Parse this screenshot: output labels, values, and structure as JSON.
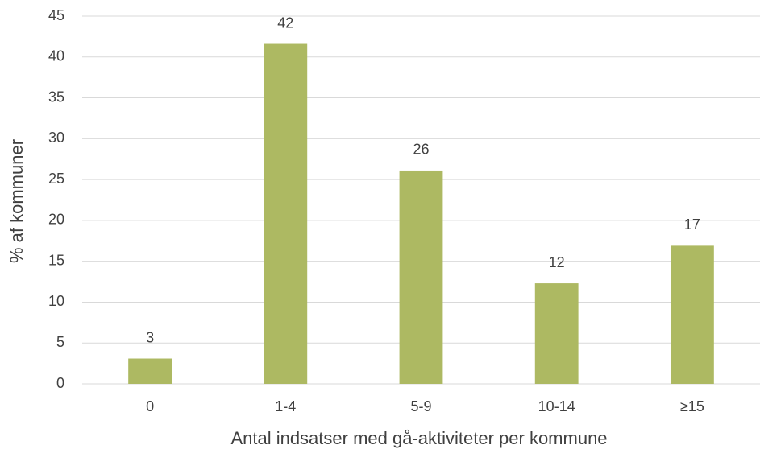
{
  "chart_data": {
    "type": "bar",
    "xlabel": "Antal indsatser med gå-aktiviteter per kommune",
    "ylabel": "% af kommuner",
    "categories": [
      "0",
      "1-4",
      "5-9",
      "10-14",
      "≥15"
    ],
    "values": [
      3.1,
      41.6,
      26.1,
      12.3,
      16.9
    ],
    "value_labels": [
      "3",
      "42",
      "26",
      "12",
      "17"
    ],
    "color": "#adb962",
    "ylim": [
      0,
      45
    ],
    "yticks": [
      0,
      5,
      10,
      15,
      20,
      25,
      30,
      35,
      40,
      45
    ],
    "grid": true
  }
}
